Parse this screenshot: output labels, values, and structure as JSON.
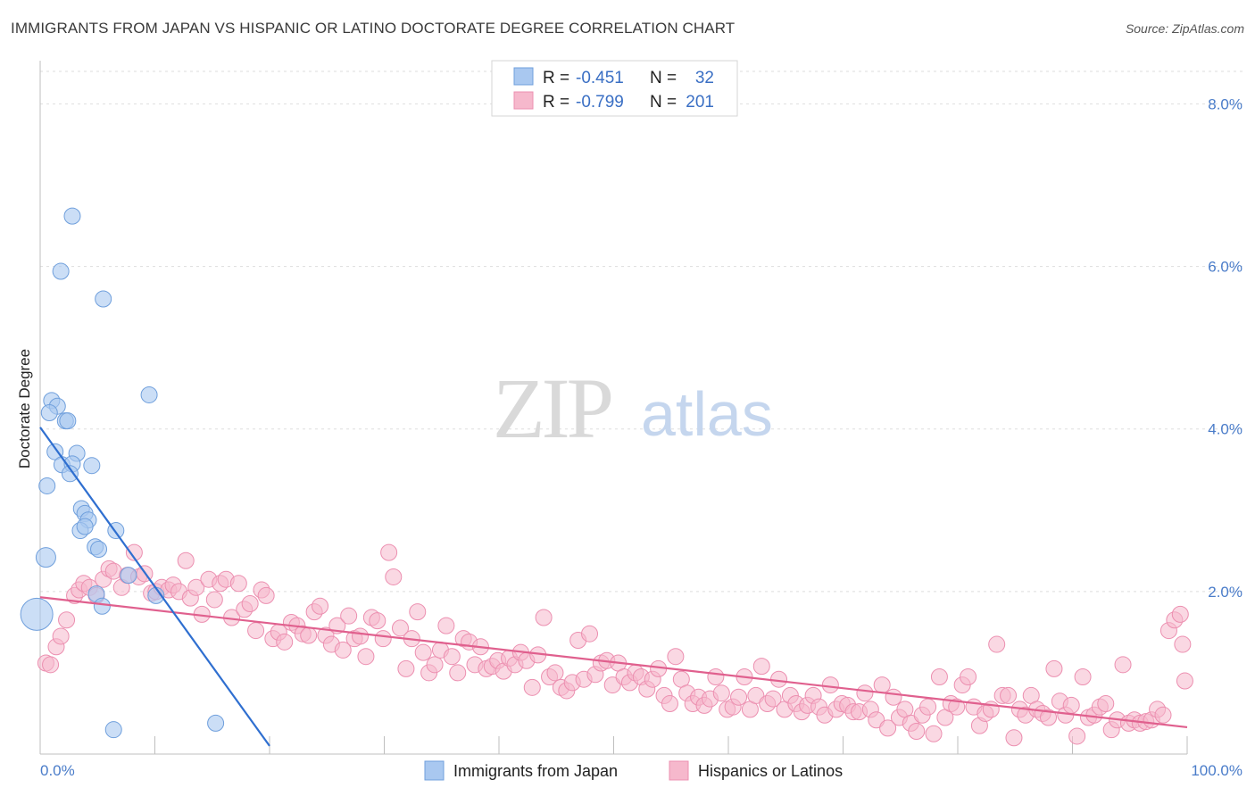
{
  "title": "IMMIGRANTS FROM JAPAN VS HISPANIC OR LATINO DOCTORATE DEGREE CORRELATION CHART",
  "source": "Source: ZipAtlas.com",
  "watermark": {
    "zip": "ZIP",
    "atlas": "atlas"
  },
  "colors": {
    "blue": "#a9c8f0",
    "blue_stroke": "#6f9fdc",
    "blue_line": "#2f6fd0",
    "pink": "#f6b8cc",
    "pink_stroke": "#ec8fb0",
    "pink_line": "#e0608e",
    "grid": "#dddddd"
  },
  "legend": {
    "rows": [
      {
        "r_label": "R =",
        "r_value": "-0.451",
        "n_label": "N =",
        "n_value": "32"
      },
      {
        "r_label": "R =",
        "r_value": "-0.799",
        "n_label": "N =",
        "n_value": "201"
      }
    ]
  },
  "bottom_legend": {
    "series1": "Immigrants from Japan",
    "series2": "Hispanics or Latinos"
  },
  "chart_data": {
    "type": "scatter",
    "title": "IMMIGRANTS FROM JAPAN VS HISPANIC OR LATINO DOCTORATE DEGREE CORRELATION CHART",
    "xlabel": "",
    "ylabel": "Doctorate Degree",
    "xlim": [
      0,
      100
    ],
    "ylim": [
      0,
      8.4
    ],
    "x_tick_labels": [
      "0.0%",
      "100.0%"
    ],
    "y_ticks": [
      2,
      4,
      6,
      8
    ],
    "y_tick_labels": [
      "2.0%",
      "4.0%",
      "6.0%",
      "8.0%"
    ],
    "grid": true,
    "series": [
      {
        "name": "Immigrants from Japan",
        "color": "#a9c8f0",
        "trend": {
          "x": [
            0,
            20
          ],
          "y": [
            4.02,
            0.1
          ]
        },
        "points": [
          [
            2.8,
            6.62
          ],
          [
            1.8,
            5.94
          ],
          [
            5.5,
            5.6
          ],
          [
            9.5,
            4.42
          ],
          [
            1.0,
            4.35
          ],
          [
            1.5,
            4.28
          ],
          [
            0.8,
            4.2
          ],
          [
            2.2,
            4.1
          ],
          [
            2.4,
            4.1
          ],
          [
            1.3,
            3.72
          ],
          [
            3.2,
            3.7
          ],
          [
            1.9,
            3.56
          ],
          [
            2.8,
            3.57
          ],
          [
            4.5,
            3.55
          ],
          [
            2.6,
            3.45
          ],
          [
            0.6,
            3.3
          ],
          [
            3.6,
            3.02
          ],
          [
            3.9,
            2.96
          ],
          [
            4.2,
            2.88
          ],
          [
            3.5,
            2.75
          ],
          [
            3.9,
            2.8
          ],
          [
            6.6,
            2.75
          ],
          [
            4.8,
            2.55
          ],
          [
            5.1,
            2.52
          ],
          [
            0.5,
            2.42
          ],
          [
            7.7,
            2.2
          ],
          [
            10.1,
            1.95
          ],
          [
            4.9,
            1.97
          ],
          [
            5.4,
            1.82
          ],
          [
            -0.3,
            1.72
          ],
          [
            6.4,
            0.3
          ],
          [
            15.3,
            0.38
          ]
        ],
        "sizes": [
          9,
          9,
          9,
          9,
          9,
          9,
          9,
          9,
          9,
          9,
          9,
          9,
          9,
          9,
          9,
          9,
          9,
          9,
          9,
          9,
          9,
          9,
          9,
          9,
          11,
          9,
          9,
          9,
          9,
          18,
          9,
          9
        ]
      },
      {
        "name": "Hispanics or Latinos",
        "color": "#f6b8cc",
        "trend": {
          "x": [
            0,
            100
          ],
          "y": [
            1.93,
            0.33
          ]
        },
        "points": [
          [
            0.5,
            1.12
          ],
          [
            0.9,
            1.1
          ],
          [
            1.4,
            1.32
          ],
          [
            1.8,
            1.45
          ],
          [
            2.3,
            1.65
          ],
          [
            3.0,
            1.95
          ],
          [
            3.4,
            2.02
          ],
          [
            3.8,
            2.1
          ],
          [
            4.3,
            2.05
          ],
          [
            4.9,
            1.95
          ],
          [
            5.5,
            2.15
          ],
          [
            6.0,
            2.28
          ],
          [
            6.4,
            2.25
          ],
          [
            7.1,
            2.05
          ],
          [
            7.6,
            2.2
          ],
          [
            8.2,
            2.48
          ],
          [
            8.6,
            2.18
          ],
          [
            9.1,
            2.22
          ],
          [
            9.7,
            1.98
          ],
          [
            10.1,
            2.0
          ],
          [
            10.6,
            2.05
          ],
          [
            11.2,
            2.02
          ],
          [
            11.6,
            2.08
          ],
          [
            12.1,
            2.0
          ],
          [
            12.7,
            2.38
          ],
          [
            13.1,
            1.92
          ],
          [
            13.6,
            2.05
          ],
          [
            14.1,
            1.72
          ],
          [
            14.7,
            2.15
          ],
          [
            15.2,
            1.9
          ],
          [
            15.7,
            2.1
          ],
          [
            16.2,
            2.15
          ],
          [
            16.7,
            1.68
          ],
          [
            17.3,
            2.1
          ],
          [
            17.8,
            1.78
          ],
          [
            18.3,
            1.85
          ],
          [
            18.8,
            1.52
          ],
          [
            19.3,
            2.02
          ],
          [
            19.7,
            1.95
          ],
          [
            20.3,
            1.42
          ],
          [
            20.8,
            1.5
          ],
          [
            21.3,
            1.38
          ],
          [
            21.9,
            1.62
          ],
          [
            22.4,
            1.58
          ],
          [
            22.9,
            1.48
          ],
          [
            23.4,
            1.46
          ],
          [
            23.9,
            1.75
          ],
          [
            24.4,
            1.82
          ],
          [
            24.9,
            1.46
          ],
          [
            25.4,
            1.35
          ],
          [
            25.9,
            1.58
          ],
          [
            26.4,
            1.28
          ],
          [
            26.9,
            1.7
          ],
          [
            27.4,
            1.42
          ],
          [
            27.9,
            1.45
          ],
          [
            28.4,
            1.2
          ],
          [
            28.9,
            1.68
          ],
          [
            29.4,
            1.64
          ],
          [
            29.9,
            1.42
          ],
          [
            30.4,
            2.48
          ],
          [
            30.8,
            2.18
          ],
          [
            31.4,
            1.55
          ],
          [
            31.9,
            1.05
          ],
          [
            32.4,
            1.42
          ],
          [
            32.9,
            1.75
          ],
          [
            33.4,
            1.25
          ],
          [
            33.9,
            1.0
          ],
          [
            34.4,
            1.1
          ],
          [
            34.9,
            1.28
          ],
          [
            35.4,
            1.58
          ],
          [
            35.9,
            1.2
          ],
          [
            36.4,
            1.0
          ],
          [
            36.9,
            1.42
          ],
          [
            37.4,
            1.38
          ],
          [
            37.9,
            1.1
          ],
          [
            38.4,
            1.32
          ],
          [
            38.9,
            1.05
          ],
          [
            39.4,
            1.08
          ],
          [
            39.9,
            1.15
          ],
          [
            40.4,
            1.02
          ],
          [
            40.9,
            1.18
          ],
          [
            41.4,
            1.1
          ],
          [
            41.9,
            1.25
          ],
          [
            42.4,
            1.15
          ],
          [
            42.9,
            0.82
          ],
          [
            43.4,
            1.22
          ],
          [
            43.9,
            1.68
          ],
          [
            44.4,
            0.95
          ],
          [
            44.9,
            1.0
          ],
          [
            45.4,
            0.82
          ],
          [
            45.9,
            0.78
          ],
          [
            46.4,
            0.88
          ],
          [
            46.9,
            1.4
          ],
          [
            47.4,
            0.92
          ],
          [
            47.9,
            1.48
          ],
          [
            48.4,
            0.98
          ],
          [
            48.9,
            1.12
          ],
          [
            49.4,
            1.15
          ],
          [
            49.9,
            0.85
          ],
          [
            50.4,
            1.12
          ],
          [
            50.9,
            0.95
          ],
          [
            51.4,
            0.88
          ],
          [
            51.9,
            1.0
          ],
          [
            52.4,
            0.95
          ],
          [
            52.9,
            0.8
          ],
          [
            53.4,
            0.92
          ],
          [
            53.9,
            1.05
          ],
          [
            54.4,
            0.72
          ],
          [
            54.9,
            0.62
          ],
          [
            55.4,
            1.2
          ],
          [
            55.9,
            0.92
          ],
          [
            56.4,
            0.75
          ],
          [
            56.9,
            0.62
          ],
          [
            57.4,
            0.7
          ],
          [
            57.9,
            0.6
          ],
          [
            58.4,
            0.68
          ],
          [
            58.9,
            0.95
          ],
          [
            59.4,
            0.75
          ],
          [
            59.9,
            0.55
          ],
          [
            60.4,
            0.58
          ],
          [
            60.9,
            0.7
          ],
          [
            61.4,
            0.95
          ],
          [
            61.9,
            0.55
          ],
          [
            62.4,
            0.72
          ],
          [
            62.9,
            1.08
          ],
          [
            63.4,
            0.62
          ],
          [
            63.9,
            0.68
          ],
          [
            64.4,
            0.92
          ],
          [
            64.9,
            0.55
          ],
          [
            65.4,
            0.72
          ],
          [
            65.9,
            0.62
          ],
          [
            66.4,
            0.52
          ],
          [
            66.9,
            0.6
          ],
          [
            67.4,
            0.72
          ],
          [
            67.9,
            0.58
          ],
          [
            68.4,
            0.48
          ],
          [
            68.9,
            0.85
          ],
          [
            69.4,
            0.55
          ],
          [
            69.9,
            0.62
          ],
          [
            70.4,
            0.6
          ],
          [
            70.9,
            0.52
          ],
          [
            71.4,
            0.52
          ],
          [
            71.9,
            0.75
          ],
          [
            72.4,
            0.55
          ],
          [
            72.9,
            0.42
          ],
          [
            73.4,
            0.85
          ],
          [
            73.9,
            0.32
          ],
          [
            74.4,
            0.7
          ],
          [
            74.9,
            0.45
          ],
          [
            75.4,
            0.55
          ],
          [
            75.9,
            0.38
          ],
          [
            76.4,
            0.28
          ],
          [
            76.9,
            0.48
          ],
          [
            77.4,
            0.58
          ],
          [
            77.9,
            0.25
          ],
          [
            78.4,
            0.95
          ],
          [
            78.9,
            0.45
          ],
          [
            79.4,
            0.62
          ],
          [
            79.9,
            0.58
          ],
          [
            80.4,
            0.85
          ],
          [
            80.9,
            0.95
          ],
          [
            81.4,
            0.58
          ],
          [
            81.9,
            0.35
          ],
          [
            82.4,
            0.5
          ],
          [
            82.9,
            0.55
          ],
          [
            83.4,
            1.35
          ],
          [
            83.9,
            0.72
          ],
          [
            84.4,
            0.72
          ],
          [
            84.9,
            0.2
          ],
          [
            85.4,
            0.55
          ],
          [
            85.9,
            0.48
          ],
          [
            86.4,
            0.72
          ],
          [
            86.9,
            0.55
          ],
          [
            87.4,
            0.5
          ],
          [
            87.9,
            0.45
          ],
          [
            88.4,
            1.05
          ],
          [
            88.9,
            0.65
          ],
          [
            89.4,
            0.48
          ],
          [
            89.9,
            0.6
          ],
          [
            90.4,
            0.22
          ],
          [
            90.9,
            0.95
          ],
          [
            91.4,
            0.45
          ],
          [
            91.9,
            0.48
          ],
          [
            92.4,
            0.58
          ],
          [
            92.9,
            0.62
          ],
          [
            93.4,
            0.3
          ],
          [
            93.9,
            0.42
          ],
          [
            94.4,
            1.1
          ],
          [
            94.9,
            0.38
          ],
          [
            95.4,
            0.42
          ],
          [
            95.9,
            0.38
          ],
          [
            96.4,
            0.4
          ],
          [
            96.9,
            0.42
          ],
          [
            97.4,
            0.55
          ],
          [
            97.9,
            0.48
          ],
          [
            98.4,
            1.52
          ],
          [
            98.9,
            1.65
          ],
          [
            99.4,
            1.72
          ],
          [
            99.6,
            1.35
          ],
          [
            99.8,
            0.9
          ]
        ],
        "sizes": []
      }
    ]
  }
}
